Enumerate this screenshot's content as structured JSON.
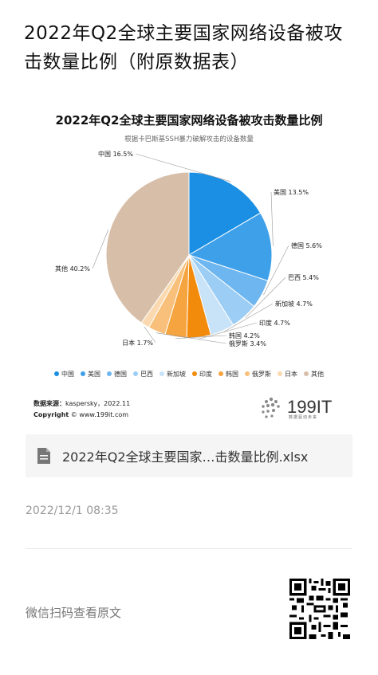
{
  "page": {
    "title": "2022年Q2全球主要国家网络设备被攻击数量比例（附原数据表）"
  },
  "chart_data": {
    "type": "pie",
    "title": "2022年Q2全球主要国家网络设备被攻击数量比例",
    "subtitle": "根据卡巴斯基SSH暴力破解攻击的设备数量",
    "categories": [
      "中国",
      "美国",
      "德国",
      "巴西",
      "新加坡",
      "印度",
      "韩国",
      "俄罗斯",
      "日本",
      "其他"
    ],
    "values": [
      16.5,
      13.5,
      5.6,
      5.4,
      4.7,
      4.7,
      4.2,
      3.4,
      1.7,
      40.2
    ],
    "labels": [
      "中国 16.5%",
      "美国 13.5%",
      "德国 5.6%",
      "巴西 5.4%",
      "新加坡 4.7%",
      "印度 4.7%",
      "韩国 4.2%",
      "俄罗斯 3.4%",
      "日本 1.7%",
      "其他 40.2%"
    ],
    "colors": [
      "#1a8fe3",
      "#3fa0ea",
      "#6db6ef",
      "#9ccdf4",
      "#c8e2f8",
      "#f28b0c",
      "#f5a440",
      "#f8c07a",
      "#fad9b0",
      "#d7bea8"
    ],
    "legend_position": "bottom"
  },
  "source": {
    "label": "数据来源：",
    "value": "kaspersky，2022.11",
    "copyright_label": "Copyright",
    "copyright_value": "© www.199it.com"
  },
  "logo": {
    "text": "199IT",
    "sub": "数据驱动未来"
  },
  "attachment": {
    "icon": "document-icon",
    "filename": "2022年Q2全球主要国家…击数量比例.xlsx"
  },
  "timestamp": "2022/12/1 08:35",
  "scan": {
    "text": "微信扫码查看原文"
  }
}
